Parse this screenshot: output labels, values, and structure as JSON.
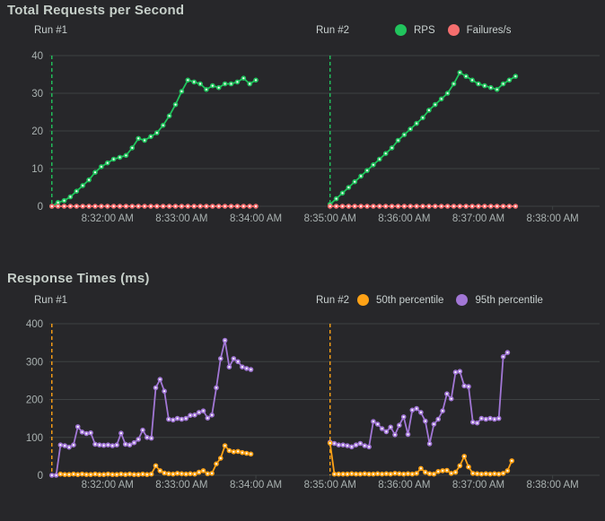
{
  "theme": {
    "background": "#27272a",
    "grid_color": "#3e4243",
    "tick_text_color": "#a9b1b0",
    "title_color": "#c6cfc9",
    "rps_green": "#21c45d",
    "failures_red": "#f56e6e",
    "p50_orange": "#ffa216",
    "p95_purple": "#a277d6"
  },
  "chart_data": [
    {
      "type": "line",
      "title": "Total Requests per Second",
      "time_base": "8:31:00 AM",
      "x_axis": {
        "tick_labels": [
          "8:32:00 AM",
          "8:33:00 AM",
          "8:34:00 AM",
          "8:35:00 AM",
          "8:36:00 AM",
          "8:37:00 AM",
          "8:38:00 AM"
        ],
        "tick_t": [
          60,
          120,
          180,
          240,
          300,
          360,
          420
        ],
        "domain_t": [
          13,
          458
        ]
      },
      "y_axis": {
        "min": 0,
        "max": 40,
        "ticks": [
          0,
          10,
          20,
          30,
          40
        ]
      },
      "run_markers": {
        "color": "#21c45d",
        "items": [
          {
            "label": "Run #1",
            "t": 15
          },
          {
            "label": "Run #2",
            "t": 240
          }
        ]
      },
      "legend": [
        {
          "label": "RPS",
          "color": "#21c45d"
        },
        {
          "label": "Failures/s",
          "color": "#f56e6e"
        }
      ],
      "series": [
        {
          "name": "RPS",
          "run": 1,
          "color": "#21c45d",
          "start_t": 15,
          "step_t": 5,
          "values": [
            0,
            1,
            1.5,
            2.5,
            4,
            5.5,
            7,
            9,
            10.5,
            11.5,
            12.5,
            13,
            13.5,
            15.5,
            18,
            17.5,
            18.5,
            19.5,
            21.5,
            24,
            27,
            30.5,
            33.5,
            33,
            32.5,
            31,
            32,
            31.5,
            32.5,
            32.5,
            33,
            34,
            32.5,
            33.5
          ]
        },
        {
          "name": "RPS",
          "run": 2,
          "color": "#21c45d",
          "start_t": 240,
          "step_t": 5,
          "values": [
            0.5,
            2,
            3.5,
            5,
            6.5,
            8,
            9.5,
            11,
            12.5,
            14,
            15.5,
            17.5,
            19,
            20.5,
            22,
            23.5,
            25.5,
            27,
            28.5,
            30,
            32.5,
            35.5,
            34.5,
            33.5,
            32.5,
            32,
            31.5,
            31,
            32.5,
            33.5,
            34.5
          ]
        },
        {
          "name": "Failures/s",
          "run": 1,
          "color": "#f56e6e",
          "start_t": 15,
          "step_t": 5,
          "values": [
            0,
            0,
            0,
            0,
            0,
            0,
            0,
            0,
            0,
            0,
            0,
            0,
            0,
            0,
            0,
            0,
            0,
            0,
            0,
            0,
            0,
            0,
            0,
            0,
            0,
            0,
            0,
            0,
            0,
            0,
            0,
            0,
            0,
            0
          ]
        },
        {
          "name": "Failures/s",
          "run": 2,
          "color": "#f56e6e",
          "start_t": 240,
          "step_t": 5,
          "values": [
            0,
            0,
            0,
            0,
            0,
            0,
            0,
            0,
            0,
            0,
            0,
            0,
            0,
            0,
            0,
            0,
            0,
            0,
            0,
            0,
            0,
            0,
            0,
            0,
            0,
            0,
            0,
            0,
            0,
            0,
            0
          ]
        }
      ]
    },
    {
      "type": "line",
      "title": "Response Times (ms)",
      "time_base": "8:31:00 AM",
      "x_axis": {
        "tick_labels": [
          "8:32:00 AM",
          "8:33:00 AM",
          "8:34:00 AM",
          "8:35:00 AM",
          "8:36:00 AM",
          "8:37:00 AM",
          "8:38:00 AM"
        ],
        "tick_t": [
          60,
          120,
          180,
          240,
          300,
          360,
          420
        ],
        "domain_t": [
          13,
          458
        ]
      },
      "y_axis": {
        "min": 0,
        "max": 400,
        "ticks": [
          0,
          100,
          200,
          300,
          400
        ]
      },
      "run_markers": {
        "color": "#ffa216",
        "items": [
          {
            "label": "Run #1",
            "t": 15
          },
          {
            "label": "Run #2",
            "t": 240
          }
        ]
      },
      "legend": [
        {
          "label": "50th percentile",
          "color": "#ffa216"
        },
        {
          "label": "95th percentile",
          "color": "#a277d6"
        }
      ],
      "series": [
        {
          "name": "95th percentile",
          "run": 1,
          "color": "#a277d6",
          "start_t": 15,
          "step_t": 3.5,
          "values": [
            0,
            0,
            80,
            78,
            74,
            80,
            128,
            114,
            110,
            112,
            82,
            80,
            79,
            80,
            78,
            80,
            111,
            82,
            80,
            86,
            95,
            119,
            100,
            98,
            231,
            253,
            222,
            148,
            146,
            150,
            148,
            150,
            158,
            159,
            166,
            170,
            151,
            159,
            231,
            308,
            356,
            286,
            308,
            300,
            286,
            282,
            279
          ]
        },
        {
          "name": "95th percentile",
          "run": 2,
          "color": "#a277d6",
          "start_t": 240,
          "step_t": 3.5,
          "values": [
            87,
            84,
            80,
            80,
            78,
            75,
            80,
            84,
            78,
            75,
            142,
            135,
            123,
            115,
            127,
            107,
            132,
            154,
            108,
            172,
            176,
            166,
            143,
            83,
            135,
            148,
            170,
            215,
            202,
            272,
            274,
            236,
            234,
            140,
            138,
            150,
            148,
            150,
            148,
            150,
            313,
            324
          ]
        },
        {
          "name": "50th percentile",
          "run": 1,
          "color": "#ffa216",
          "start_t": 22,
          "step_t": 3.5,
          "values": [
            3,
            2,
            2,
            3,
            2,
            3,
            2,
            2,
            3,
            2,
            2,
            3,
            2,
            2,
            3,
            2,
            3,
            2,
            2,
            3,
            2,
            3,
            25,
            12,
            6,
            4,
            3,
            5,
            4,
            3,
            4,
            3,
            8,
            12,
            4,
            5,
            30,
            45,
            78,
            65,
            62,
            63,
            60,
            58,
            56
          ]
        },
        {
          "name": "50th percentile",
          "run": 2,
          "color": "#ffa216",
          "start_t": 240,
          "step_t": 3.5,
          "values": [
            85,
            3,
            3,
            3,
            3,
            4,
            3,
            3,
            4,
            3,
            3,
            4,
            3,
            4,
            3,
            5,
            4,
            3,
            4,
            3,
            5,
            18,
            8,
            4,
            3,
            10,
            12,
            13,
            5,
            8,
            25,
            50,
            22,
            5,
            4,
            3,
            4,
            3,
            4,
            3,
            5,
            12,
            38
          ]
        }
      ]
    }
  ]
}
